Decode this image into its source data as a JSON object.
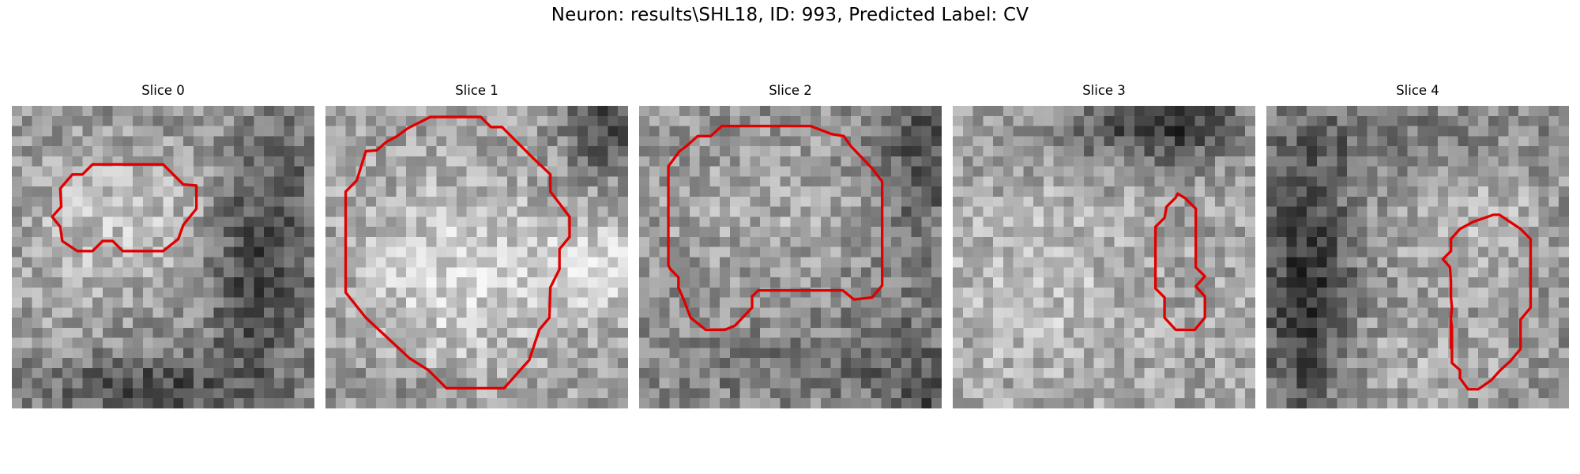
{
  "figure": {
    "title": "Neuron: results\\SHL18, ID: 993, Predicted Label: CV",
    "contour_color": "#e00000",
    "colormap": "grayscale"
  },
  "slices": [
    {
      "title": "Slice 0"
    },
    {
      "title": "Slice 1"
    },
    {
      "title": "Slice 2"
    },
    {
      "title": "Slice 3"
    },
    {
      "title": "Slice 4"
    }
  ]
}
